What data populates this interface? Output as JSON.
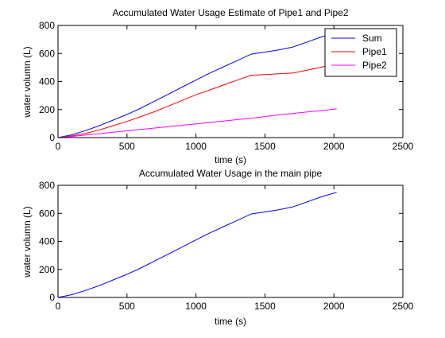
{
  "chart_data": [
    {
      "type": "line",
      "title": "Accumulated Water Usage Estimate of Pipe1 and Pipe2",
      "xlabel": "time (s)",
      "ylabel": "water volumn (L)",
      "xlim": [
        0,
        2500
      ],
      "ylim": [
        0,
        800
      ],
      "xticks": [
        0,
        500,
        1000,
        1500,
        2000,
        2500
      ],
      "yticks": [
        0,
        200,
        400,
        600,
        800
      ],
      "grid": false,
      "legend": "top-right",
      "series": [
        {
          "name": "Sum",
          "color": "#0000ff",
          "x": [
            0,
            100,
            200,
            300,
            400,
            500,
            600,
            700,
            800,
            900,
            1000,
            1100,
            1200,
            1300,
            1400,
            1500,
            1600,
            1700,
            1800,
            1900,
            2020
          ],
          "y": [
            0,
            20,
            50,
            85,
            125,
            165,
            210,
            260,
            310,
            360,
            410,
            460,
            505,
            550,
            595,
            610,
            625,
            645,
            680,
            715,
            750
          ]
        },
        {
          "name": "Pipe1",
          "color": "#ff0000",
          "x": [
            0,
            100,
            200,
            300,
            400,
            500,
            600,
            700,
            800,
            900,
            1000,
            1100,
            1200,
            1300,
            1400,
            1500,
            1600,
            1700,
            1800,
            1900,
            2020
          ],
          "y": [
            0,
            12,
            30,
            55,
            85,
            115,
            150,
            185,
            225,
            265,
            305,
            340,
            375,
            410,
            445,
            450,
            455,
            460,
            480,
            500,
            530
          ]
        },
        {
          "name": "Pipe2",
          "color": "#ff00ff",
          "x": [
            0,
            100,
            200,
            300,
            400,
            500,
            600,
            700,
            800,
            900,
            1000,
            1100,
            1200,
            1300,
            1400,
            1500,
            1600,
            1700,
            1800,
            1900,
            2020
          ],
          "y": [
            0,
            8,
            18,
            28,
            38,
            48,
            58,
            68,
            78,
            88,
            98,
            108,
            118,
            128,
            138,
            150,
            162,
            172,
            182,
            192,
            205
          ]
        }
      ]
    },
    {
      "type": "line",
      "title": "Accumulated Water Usage in the main pipe",
      "xlabel": "time (s)",
      "ylabel": "water volumn (L)",
      "xlim": [
        0,
        2500
      ],
      "ylim": [
        0,
        800
      ],
      "xticks": [
        0,
        500,
        1000,
        1500,
        2000,
        2500
      ],
      "yticks": [
        0,
        200,
        400,
        600,
        800
      ],
      "grid": false,
      "legend": "none",
      "series": [
        {
          "color": "#0000ff",
          "x": [
            0,
            100,
            200,
            300,
            400,
            500,
            600,
            700,
            800,
            900,
            1000,
            1100,
            1200,
            1300,
            1400,
            1500,
            1600,
            1700,
            1800,
            1900,
            2020
          ],
          "y": [
            0,
            20,
            50,
            85,
            125,
            165,
            210,
            260,
            310,
            360,
            410,
            460,
            505,
            550,
            595,
            610,
            625,
            645,
            680,
            715,
            750
          ]
        }
      ]
    }
  ]
}
